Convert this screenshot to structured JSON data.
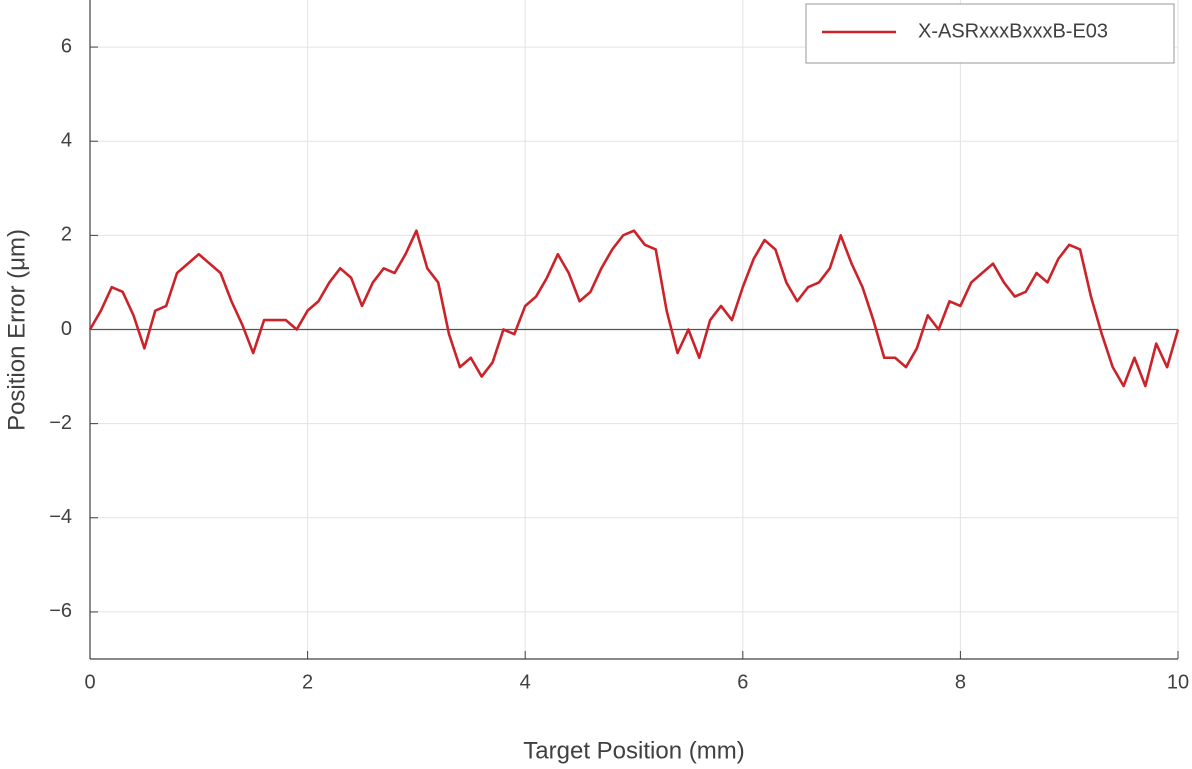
{
  "chart_data": {
    "type": "line",
    "x_label": "Target Position (mm)",
    "y_label": "Position Error (μm)",
    "xlim": [
      0,
      10
    ],
    "ylim": [
      -7,
      7
    ],
    "xticks": [
      0,
      2,
      4,
      6,
      8,
      10
    ],
    "yticks": [
      {
        "value": -6,
        "label": "−6"
      },
      {
        "value": -4,
        "label": "−4"
      },
      {
        "value": -2,
        "label": "−2"
      },
      0,
      2,
      4,
      6
    ],
    "grid": true,
    "legend": "upper right",
    "x": [
      0,
      0.1,
      0.2,
      0.3,
      0.4,
      0.5,
      0.6,
      0.7,
      0.8,
      0.9,
      1,
      1.1,
      1.2,
      1.3,
      1.4,
      1.5,
      1.6,
      1.7,
      1.8,
      1.9,
      2,
      2.1,
      2.2,
      2.3,
      2.4,
      2.5,
      2.6,
      2.7,
      2.8,
      2.9,
      3,
      3.1,
      3.2,
      3.3,
      3.4,
      3.5,
      3.6,
      3.7,
      3.8,
      3.9,
      4,
      4.1,
      4.2,
      4.3,
      4.4,
      4.5,
      4.6,
      4.7,
      4.8,
      4.9,
      5,
      5.1,
      5.2,
      5.3,
      5.4,
      5.5,
      5.6,
      5.7,
      5.8,
      5.9,
      6,
      6.1,
      6.2,
      6.3,
      6.4,
      6.5,
      6.6,
      6.7,
      6.8,
      6.9,
      7,
      7.1,
      7.2,
      7.3,
      7.4,
      7.5,
      7.6,
      7.7,
      7.8,
      7.9,
      8,
      8.1,
      8.2,
      8.3,
      8.4,
      8.5,
      8.6,
      8.7,
      8.8,
      8.9,
      9,
      9.1,
      9.2,
      9.3,
      9.4,
      9.5,
      9.6,
      9.7,
      9.8,
      9.9,
      10
    ],
    "series": [
      {
        "name": "X-ASRxxxBxxxB-E03",
        "color": "#cc2229",
        "values": [
          0,
          0.4,
          0.9,
          0.8,
          0.3,
          -0.4,
          0.4,
          0.5,
          1.2,
          1.4,
          1.6,
          1.4,
          1.2,
          0.6,
          0.1,
          -0.5,
          0.2,
          0.2,
          0.2,
          0,
          0.4,
          0.6,
          1,
          1.3,
          1.1,
          0.5,
          1,
          1.3,
          1.2,
          1.6,
          2.1,
          1.3,
          1,
          -0.1,
          -0.8,
          -0.6,
          -1,
          -0.7,
          0,
          -0.1,
          0.5,
          0.7,
          1.1,
          1.6,
          1.2,
          0.6,
          0.8,
          1.3,
          1.7,
          2,
          2.1,
          1.8,
          1.7,
          0.4,
          -0.5,
          0,
          -0.6,
          0.2,
          0.5,
          0.2,
          0.9,
          1.5,
          1.9,
          1.7,
          1,
          0.6,
          0.9,
          1,
          1.3,
          2,
          1.4,
          0.9,
          0.2,
          -0.6,
          -0.6,
          -0.8,
          -0.4,
          0.3,
          0,
          0.6,
          0.5,
          1,
          1.2,
          1.4,
          1,
          0.7,
          0.8,
          1.2,
          1,
          1.5,
          1.8,
          1.7,
          0.7,
          -0.1,
          -0.8,
          -1.2,
          -0.6,
          -1.2,
          -0.3,
          -0.8,
          0
        ]
      }
    ]
  }
}
